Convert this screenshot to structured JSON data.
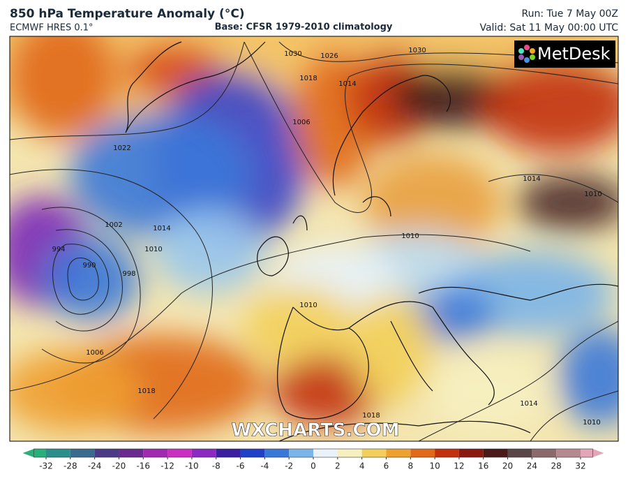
{
  "header": {
    "title": "850 hPa Temperature Anomaly (°C)",
    "model": "ECMWF HRES 0.1°",
    "base": "Base: CFSR 1979-2010 climatology",
    "run": "Run: Tue 7 May 00Z",
    "valid": "Valid: Sat 11 May 00:00 UTC"
  },
  "logo": "MetDesk",
  "watermark": "WXCHARTS.COM",
  "isobar_labels": [
    1030,
    1026,
    1030,
    1018,
    1014,
    1006,
    1022,
    1014,
    1002,
    1010,
    994,
    990,
    998,
    1006,
    1018,
    1010,
    1010,
    1014,
    1010,
    1014,
    1018,
    1010
  ],
  "colorbar": {
    "ticks": [
      -32,
      -28,
      -24,
      -20,
      -16,
      -12,
      -10,
      -8,
      -6,
      -4,
      -2,
      0,
      2,
      4,
      6,
      8,
      10,
      12,
      16,
      20,
      24,
      28,
      32
    ],
    "colors": [
      "#27b07a",
      "#2a8f8a",
      "#3a6a8e",
      "#4b3a86",
      "#6a2a8e",
      "#a02ab0",
      "#c82fc2",
      "#8a2ac0",
      "#3a1fa0",
      "#2040c8",
      "#3a78d8",
      "#7ab4e8",
      "#e8f2f8",
      "#f6efc0",
      "#f2cf5a",
      "#eea030",
      "#e06a1a",
      "#c2300e",
      "#8a1a10",
      "#4a1a1a",
      "#5a4646",
      "#8a6a6a",
      "#b48a90",
      "#e2a6b8"
    ]
  }
}
